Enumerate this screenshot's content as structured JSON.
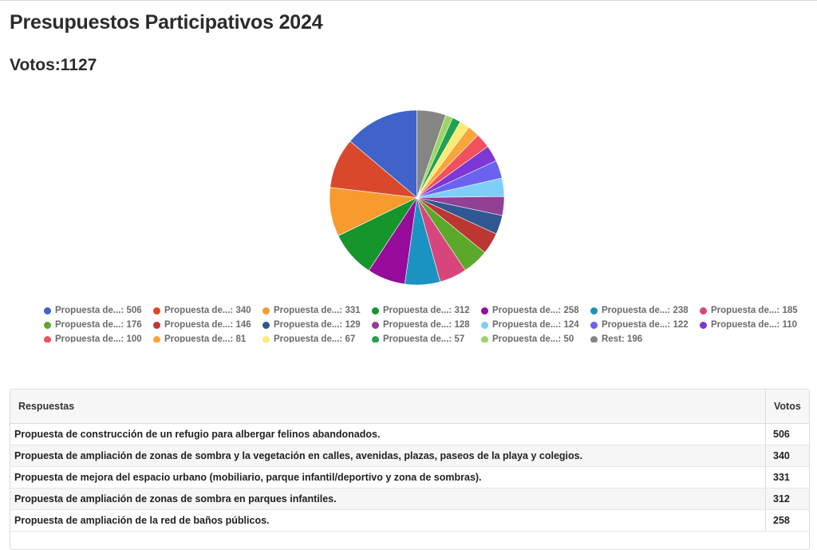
{
  "page": {
    "title": "Presupuestos Participativos 2024",
    "votes_label": "Votos:1127"
  },
  "chart_data": {
    "type": "pie",
    "slices": [
      {
        "label": "Propuesta de...",
        "value": 506,
        "color": "#3f63c8"
      },
      {
        "label": "Propuesta de...",
        "value": 340,
        "color": "#d9482a"
      },
      {
        "label": "Propuesta de...",
        "value": 331,
        "color": "#f89b2e"
      },
      {
        "label": "Propuesta de...",
        "value": 312,
        "color": "#16952d"
      },
      {
        "label": "Propuesta de...",
        "value": 258,
        "color": "#960b9a"
      },
      {
        "label": "Propuesta de...",
        "value": 238,
        "color": "#1a93c2"
      },
      {
        "label": "Propuesta de...",
        "value": 185,
        "color": "#d7467b"
      },
      {
        "label": "Propuesta de...",
        "value": 176,
        "color": "#5ba82b"
      },
      {
        "label": "Propuesta de...",
        "value": 146,
        "color": "#bc3634"
      },
      {
        "label": "Propuesta de...",
        "value": 129,
        "color": "#2f5792"
      },
      {
        "label": "Propuesta de...",
        "value": 128,
        "color": "#914096"
      },
      {
        "label": "Propuesta de...",
        "value": 124,
        "color": "#7ecff8"
      },
      {
        "label": "Propuesta de...",
        "value": 122,
        "color": "#6a63f0"
      },
      {
        "label": "Propuesta de...",
        "value": 110,
        "color": "#7e36d5"
      },
      {
        "label": "Propuesta de...",
        "value": 100,
        "color": "#f2505d"
      },
      {
        "label": "Propuesta de...",
        "value": 81,
        "color": "#f8a53a"
      },
      {
        "label": "Propuesta de...",
        "value": 67,
        "color": "#fbeb75"
      },
      {
        "label": "Propuesta de...",
        "value": 57,
        "color": "#21a14f"
      },
      {
        "label": "Propuesta de...",
        "value": 50,
        "color": "#9ed465"
      },
      {
        "label": "Rest",
        "value": 196,
        "color": "#858585"
      }
    ],
    "legend_position": "bottom"
  },
  "table": {
    "headers": [
      "Respuestas",
      "Votos"
    ],
    "rows": [
      {
        "answer": "Propuesta de construcción de un refugio para albergar felinos abandonados.",
        "votes": "506"
      },
      {
        "answer": "Propuesta de ampliación de zonas de sombra y la vegetación en calles, avenidas, plazas, paseos de la playa y colegios.",
        "votes": "340"
      },
      {
        "answer": "Propuesta de mejora del espacio urbano (mobiliario, parque infantil/deportivo y zona de sombras).",
        "votes": "331"
      },
      {
        "answer": "Propuesta de ampliación de zonas de sombra en parques infantiles.",
        "votes": "312"
      },
      {
        "answer": "Propuesta de ampliación de la red de baños públicos.",
        "votes": "258"
      }
    ]
  }
}
